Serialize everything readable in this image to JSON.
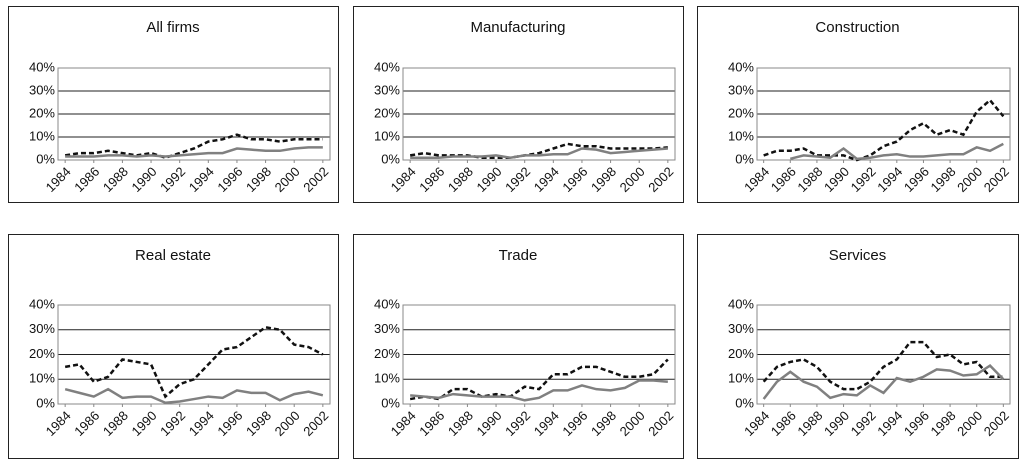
{
  "chart_data": [
    {
      "type": "line",
      "title": "All firms",
      "x": [
        1984,
        1985,
        1986,
        1987,
        1988,
        1989,
        1990,
        1991,
        1992,
        1993,
        1994,
        1995,
        1996,
        1997,
        1998,
        1999,
        2000,
        2001,
        2002
      ],
      "series": [
        {
          "color": "#111111",
          "line_style": "dashed",
          "values": [
            2,
            3,
            3,
            4,
            3,
            2,
            3,
            1,
            3,
            5,
            8,
            9,
            11,
            9,
            9,
            8,
            9,
            9,
            9
          ]
        },
        {
          "color": "#808080",
          "line_style": "solid",
          "values": [
            1.5,
            1.5,
            1.5,
            2,
            2,
            1.5,
            2,
            1.5,
            2,
            2.5,
            3,
            3,
            5,
            4.5,
            4,
            4,
            5,
            5.5,
            5.5
          ]
        }
      ],
      "xlim": [
        1983.5,
        2002.5
      ],
      "xticks": [
        1984,
        1986,
        1988,
        1990,
        1992,
        1994,
        1996,
        1998,
        2000,
        2002
      ],
      "ylim": [
        0,
        40
      ],
      "yticks": [
        {
          "value": 0,
          "label": "0%"
        },
        {
          "value": 10,
          "label": "10%"
        },
        {
          "value": 20,
          "label": "20%"
        },
        {
          "value": 30,
          "label": "30%"
        },
        {
          "value": 40,
          "label": "40%"
        }
      ],
      "grid": true
    },
    {
      "type": "line",
      "title": "Manufacturing",
      "x": [
        1984,
        1985,
        1986,
        1987,
        1988,
        1989,
        1990,
        1991,
        1992,
        1993,
        1994,
        1995,
        1996,
        1997,
        1998,
        1999,
        2000,
        2001,
        2002
      ],
      "series": [
        {
          "color": "#111111",
          "line_style": "dashed",
          "values": [
            2,
            3,
            2,
            2,
            2,
            1,
            1,
            1,
            2,
            3,
            5,
            7,
            6,
            6,
            5,
            5,
            5,
            5,
            5.5
          ]
        },
        {
          "color": "#808080",
          "line_style": "solid",
          "values": [
            1,
            1,
            1,
            1.5,
            1.5,
            1.5,
            2,
            1,
            2,
            2,
            2.5,
            2.5,
            5,
            4.5,
            3,
            3.5,
            4,
            4.5,
            5
          ]
        }
      ],
      "xlim": [
        1983.5,
        2002.5
      ],
      "xticks": [
        1984,
        1986,
        1988,
        1990,
        1992,
        1994,
        1996,
        1998,
        2000,
        2002
      ],
      "ylim": [
        0,
        40
      ],
      "yticks": [
        {
          "value": 0,
          "label": "0%"
        },
        {
          "value": 10,
          "label": "10%"
        },
        {
          "value": 20,
          "label": "20%"
        },
        {
          "value": 30,
          "label": "30%"
        },
        {
          "value": 40,
          "label": "40%"
        }
      ],
      "grid": true
    },
    {
      "type": "line",
      "title": "Construction",
      "x": [
        1984,
        1985,
        1986,
        1987,
        1988,
        1989,
        1990,
        1991,
        1992,
        1993,
        1994,
        1995,
        1996,
        1997,
        1998,
        1999,
        2000,
        2001,
        2002
      ],
      "series": [
        {
          "color": "#111111",
          "line_style": "dashed",
          "values": [
            2,
            4,
            4,
            5,
            2,
            2,
            2,
            0,
            2,
            6,
            8,
            13,
            16,
            11,
            13,
            11,
            21,
            26,
            19
          ]
        },
        {
          "color": "#808080",
          "line_style": "solid",
          "values": [
            null,
            null,
            0.5,
            2,
            1.5,
            1,
            5,
            0.5,
            1,
            2,
            2.5,
            1.5,
            1.5,
            2,
            2.5,
            2.5,
            5.5,
            4,
            7
          ]
        }
      ],
      "xlim": [
        1983.5,
        2002.5
      ],
      "xticks": [
        1984,
        1986,
        1988,
        1990,
        1992,
        1994,
        1996,
        1998,
        2000,
        2002
      ],
      "ylim": [
        0,
        40
      ],
      "yticks": [
        {
          "value": 0,
          "label": "0%"
        },
        {
          "value": 10,
          "label": "10%"
        },
        {
          "value": 20,
          "label": "20%"
        },
        {
          "value": 30,
          "label": "30%"
        },
        {
          "value": 40,
          "label": "40%"
        }
      ],
      "grid": true
    },
    {
      "type": "line",
      "title": "Real estate",
      "x": [
        1984,
        1985,
        1986,
        1987,
        1988,
        1989,
        1990,
        1991,
        1992,
        1993,
        1994,
        1995,
        1996,
        1997,
        1998,
        1999,
        2000,
        2001,
        2002
      ],
      "series": [
        {
          "color": "#111111",
          "line_style": "dashed",
          "values": [
            15,
            16,
            9,
            11,
            18,
            17,
            16,
            3,
            8,
            10,
            16,
            22,
            23,
            27,
            31,
            30,
            24,
            23,
            20
          ]
        },
        {
          "color": "#808080",
          "line_style": "solid",
          "values": [
            6,
            4.5,
            3,
            6,
            2.5,
            3,
            3,
            0.5,
            1,
            2,
            3,
            2.5,
            5.5,
            4.5,
            4.5,
            1.5,
            4,
            5,
            3.5
          ]
        }
      ],
      "xlim": [
        1983.5,
        2002.5
      ],
      "xticks": [
        1984,
        1986,
        1988,
        1990,
        1992,
        1994,
        1996,
        1998,
        2000,
        2002
      ],
      "ylim": [
        0,
        40
      ],
      "yticks": [
        {
          "value": 0,
          "label": "0%"
        },
        {
          "value": 10,
          "label": "10%"
        },
        {
          "value": 20,
          "label": "20%"
        },
        {
          "value": 30,
          "label": "30%"
        },
        {
          "value": 40,
          "label": "40%"
        }
      ],
      "grid": true
    },
    {
      "type": "line",
      "title": "Trade",
      "x": [
        1984,
        1985,
        1986,
        1987,
        1988,
        1989,
        1990,
        1991,
        1992,
        1993,
        1994,
        1995,
        1996,
        1997,
        1998,
        1999,
        2000,
        2001,
        2002
      ],
      "series": [
        {
          "color": "#111111",
          "line_style": "dashed",
          "values": [
            2,
            3,
            2,
            6,
            6,
            3,
            4,
            3,
            7,
            6,
            12,
            12,
            15,
            15,
            13,
            11,
            11,
            12,
            18
          ]
        },
        {
          "color": "#808080",
          "line_style": "solid",
          "values": [
            3.5,
            3,
            2.5,
            4,
            3.5,
            3,
            3,
            3,
            1.5,
            2.5,
            5.5,
            5.5,
            7.5,
            6,
            5.5,
            6.5,
            9.5,
            9.5,
            9
          ]
        }
      ],
      "xlim": [
        1983.5,
        2002.5
      ],
      "xticks": [
        1984,
        1986,
        1988,
        1990,
        1992,
        1994,
        1996,
        1998,
        2000,
        2002
      ],
      "ylim": [
        0,
        40
      ],
      "yticks": [
        {
          "value": 0,
          "label": "0%"
        },
        {
          "value": 10,
          "label": "10%"
        },
        {
          "value": 20,
          "label": "20%"
        },
        {
          "value": 30,
          "label": "30%"
        },
        {
          "value": 40,
          "label": "40%"
        }
      ],
      "grid": true
    },
    {
      "type": "line",
      "title": "Services",
      "x": [
        1984,
        1985,
        1986,
        1987,
        1988,
        1989,
        1990,
        1991,
        1992,
        1993,
        1994,
        1995,
        1996,
        1997,
        1998,
        1999,
        2000,
        2001,
        2002
      ],
      "series": [
        {
          "color": "#111111",
          "line_style": "dashed",
          "values": [
            9,
            15,
            17,
            18,
            15,
            9,
            6,
            6,
            9,
            15,
            18,
            25,
            25,
            19,
            20,
            16,
            17,
            11,
            11
          ]
        },
        {
          "color": "#808080",
          "line_style": "solid",
          "values": [
            2,
            9,
            13,
            9,
            7,
            2.5,
            4,
            3.5,
            7.5,
            4.5,
            10.5,
            9,
            11,
            14,
            13.5,
            11.5,
            12,
            15.5,
            10
          ]
        }
      ],
      "xlim": [
        1983.5,
        2002.5
      ],
      "xticks": [
        1984,
        1986,
        1988,
        1990,
        1992,
        1994,
        1996,
        1998,
        2000,
        2002
      ],
      "ylim": [
        0,
        40
      ],
      "yticks": [
        {
          "value": 0,
          "label": "0%"
        },
        {
          "value": 10,
          "label": "10%"
        },
        {
          "value": 20,
          "label": "20%"
        },
        {
          "value": 30,
          "label": "30%"
        },
        {
          "value": 40,
          "label": "40%"
        }
      ],
      "grid": true
    }
  ]
}
